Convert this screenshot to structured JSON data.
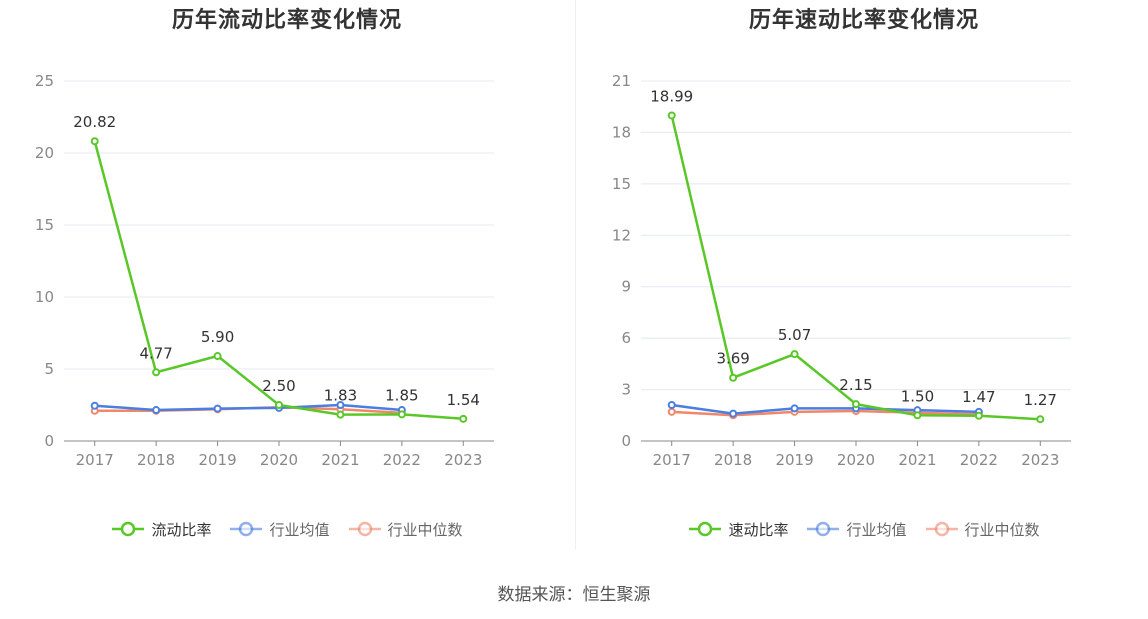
{
  "source_text": "数据来源：恒生聚源",
  "chart_data": [
    {
      "type": "line",
      "title": "历年流动比率变化情况",
      "categories": [
        "2017",
        "2018",
        "2019",
        "2020",
        "2021",
        "2022",
        "2023"
      ],
      "ylim": [
        0,
        25
      ],
      "yticks": [
        0,
        5,
        10,
        15,
        20,
        25
      ],
      "grid": true,
      "legend_position": "bottom",
      "series": [
        {
          "name": "流动比率",
          "color": "#5ac728",
          "values": [
            20.82,
            4.77,
            5.9,
            2.5,
            1.83,
            1.85,
            1.54
          ],
          "data_labels": [
            "20.82",
            "4.77",
            "5.90",
            "2.50",
            "1.83",
            "1.85",
            "1.54"
          ]
        },
        {
          "name": "行业均值",
          "color": "#4a7ee0",
          "values": [
            2.45,
            2.15,
            2.25,
            2.3,
            2.5,
            2.15,
            null
          ]
        },
        {
          "name": "行业中位数",
          "color": "#f0876a",
          "values": [
            2.1,
            2.1,
            2.2,
            2.35,
            2.2,
            1.95,
            null
          ]
        }
      ]
    },
    {
      "type": "line",
      "title": "历年速动比率变化情况",
      "categories": [
        "2017",
        "2018",
        "2019",
        "2020",
        "2021",
        "2022",
        "2023"
      ],
      "ylim": [
        0,
        21
      ],
      "yticks": [
        0,
        3,
        6,
        9,
        12,
        15,
        18,
        21
      ],
      "grid": true,
      "legend_position": "bottom",
      "series": [
        {
          "name": "速动比率",
          "color": "#5ac728",
          "values": [
            18.99,
            3.69,
            5.07,
            2.15,
            1.5,
            1.47,
            1.27
          ],
          "data_labels": [
            "18.99",
            "3.69",
            "5.07",
            "2.15",
            "1.50",
            "1.47",
            "1.27"
          ]
        },
        {
          "name": "行业均值",
          "color": "#4a7ee0",
          "values": [
            2.1,
            1.6,
            1.9,
            1.9,
            1.8,
            1.7,
            null
          ]
        },
        {
          "name": "行业中位数",
          "color": "#f0876a",
          "values": [
            1.7,
            1.5,
            1.7,
            1.75,
            1.65,
            1.55,
            null
          ]
        }
      ]
    }
  ]
}
